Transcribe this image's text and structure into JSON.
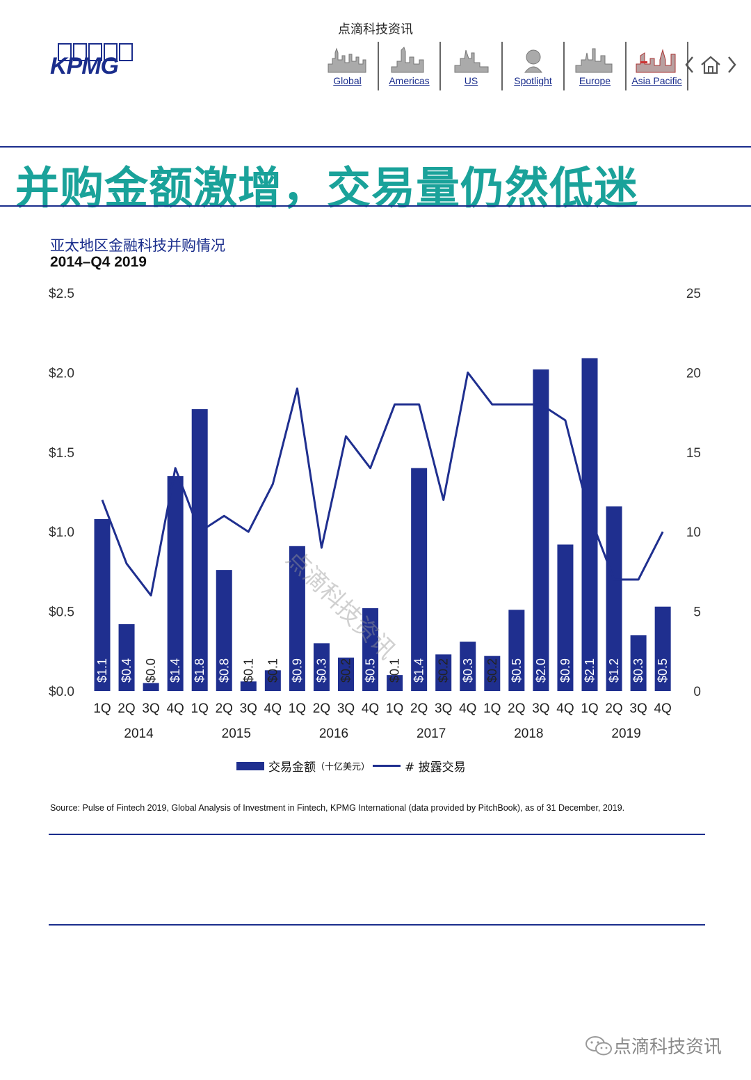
{
  "header": {
    "top_watermark": "点滴科技资讯",
    "logo_text": "KPMG",
    "nav": [
      {
        "label": "Global",
        "icon": "skyline-global-icon"
      },
      {
        "label": "Americas",
        "icon": "skyline-americas-icon"
      },
      {
        "label": "US",
        "icon": "skyline-us-icon"
      },
      {
        "label": "Spotlight",
        "icon": "spotlight-bust-icon"
      },
      {
        "label": "Europe",
        "icon": "skyline-europe-icon"
      },
      {
        "label": "Asia Pacific",
        "icon": "skyline-asia-pacific-icon"
      }
    ],
    "controls": {
      "prev": "chevron-left-icon",
      "home": "home-icon",
      "next": "chevron-right-icon"
    }
  },
  "headline": "并购金额激增，交易量仍然低迷",
  "chart_title": "亚太地区金融科技并购情况",
  "chart_subtitle": "2014–Q4 2019",
  "colors": {
    "bar": "#1f2f8f",
    "line": "#1f2f8f",
    "headline": "#1aa29a",
    "rule": "#1a2d8c"
  },
  "chart_data": {
    "type": "bar",
    "title": "亚太地区金融科技并购情况",
    "subtitle": "2014–Q4 2019",
    "categories": [
      "1Q",
      "2Q",
      "3Q",
      "4Q",
      "1Q",
      "2Q",
      "3Q",
      "4Q",
      "1Q",
      "2Q",
      "3Q",
      "4Q",
      "1Q",
      "2Q",
      "3Q",
      "4Q",
      "1Q",
      "2Q",
      "3Q",
      "4Q",
      "1Q",
      "2Q",
      "3Q",
      "4Q"
    ],
    "year_labels": [
      "2014",
      "2015",
      "2016",
      "2017",
      "2018",
      "2019"
    ],
    "series": [
      {
        "name": "交易金额",
        "unit": "（十亿美元）",
        "type": "bar",
        "axis": "left",
        "values": [
          1.08,
          0.42,
          0.05,
          1.35,
          1.77,
          0.76,
          0.06,
          0.13,
          0.91,
          0.3,
          0.21,
          0.52,
          0.1,
          1.4,
          0.23,
          0.31,
          0.22,
          0.51,
          2.02,
          0.92,
          2.09,
          1.16,
          0.35,
          0.53
        ],
        "labels": [
          "$1.1",
          "$0.4",
          "$0.0",
          "$1.4",
          "$1.8",
          "$0.8",
          "$0.1",
          "$0.1",
          "$0.9",
          "$0.3",
          "$0.2",
          "$0.5",
          "$0.1",
          "$1.4",
          "$0.2",
          "$0.3",
          "$0.2",
          "$0.5",
          "$2.0",
          "$0.9",
          "$2.1",
          "$1.2",
          "$0.3",
          "$0.5"
        ]
      },
      {
        "name": "# 披露交易",
        "type": "line",
        "axis": "right",
        "values": [
          12,
          8,
          6,
          14,
          10,
          11,
          10,
          13,
          19,
          9,
          16,
          14,
          18,
          18,
          12,
          20,
          18,
          18,
          18,
          17,
          11,
          7,
          7,
          10
        ]
      }
    ],
    "y_left": {
      "ticks": [
        "$0.0",
        "$0.5",
        "$1.0",
        "$1.5",
        "$2.0",
        "$2.5"
      ],
      "range": [
        0,
        2.5
      ]
    },
    "y_right": {
      "ticks": [
        "0",
        "5",
        "10",
        "15",
        "20",
        "25"
      ],
      "range": [
        0,
        25
      ]
    },
    "legend": {
      "bar_label": "交易金额",
      "bar_unit": "（十亿美元）",
      "line_label": "# 披露交易"
    },
    "watermark": "点滴科技资讯"
  },
  "source": "Source: Pulse of Fintech 2019, Global Analysis of Investment in Fintech, KPMG International (data provided by PitchBook), as of 31 December, 2019.",
  "footer_watermark": "点滴科技资讯"
}
